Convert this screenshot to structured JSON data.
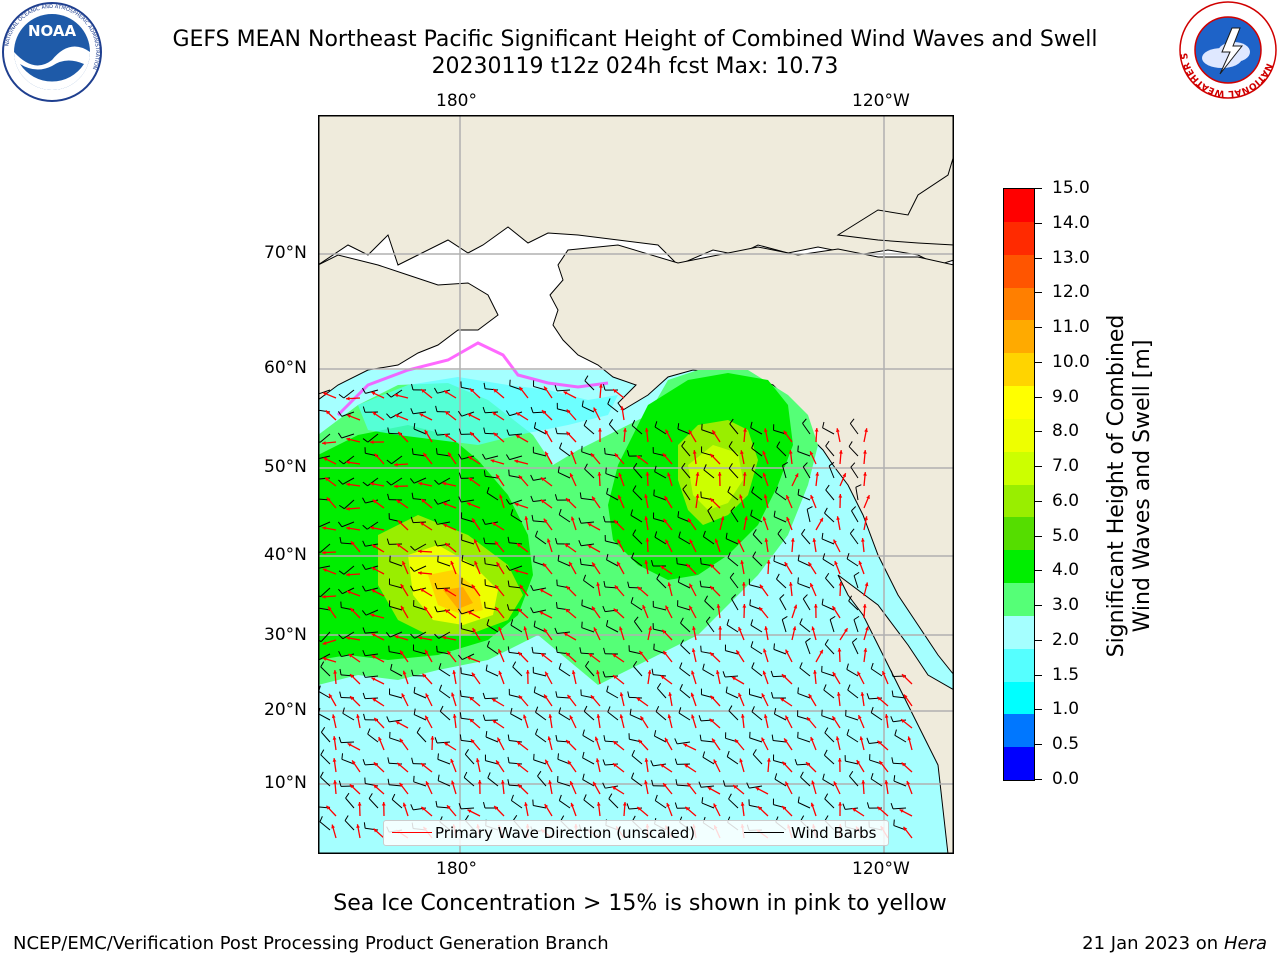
{
  "title": {
    "line1": "GEFS MEAN Northeast Pacific Significant Height of Combined Wind Waves and Swell",
    "line2": "20230119 t12z 024h fcst   Max: 10.73"
  },
  "map": {
    "lon_ticks_top": [
      "180°",
      "120°W"
    ],
    "lon_ticks_bottom": [
      "180°",
      "120°W"
    ],
    "lat_ticks": [
      "70°N",
      "60°N",
      "50°N",
      "40°N",
      "30°N",
      "20°N",
      "10°N"
    ],
    "colors": {
      "land": "#efebdc",
      "ocean_low": "#a5ffff",
      "grid": "#b0b0b0",
      "wave_arrow": "#ff0000",
      "wind_barb": "#000000"
    }
  },
  "legend": {
    "wave_direction": "Primary Wave Direction (unscaled)",
    "wind_barbs": "Wind Barbs"
  },
  "colorbar": {
    "title_line1": "Significant Height of Combined",
    "title_line2": "Wind Waves and Swell [m]",
    "ticks": [
      "15.0",
      "14.0",
      "13.0",
      "12.0",
      "11.0",
      "10.0",
      "9.0",
      "8.0",
      "7.0",
      "6.0",
      "5.0",
      "4.0",
      "3.0",
      "2.0",
      "1.5",
      "1.0",
      "0.5",
      "0.0"
    ],
    "colors": [
      "#ff0000",
      "#ff2a00",
      "#ff5500",
      "#ff7f00",
      "#ffaa00",
      "#ffd400",
      "#ffff00",
      "#eeff00",
      "#ccff00",
      "#99ee00",
      "#55dd00",
      "#00ee00",
      "#55ff77",
      "#a5ffff",
      "#55ffff",
      "#00ffff",
      "#0077ff",
      "#0000ff"
    ]
  },
  "subtitle": "Sea Ice Concentration > 15% is shown in pink to yellow",
  "footer": {
    "left": "NCEP/EMC/Verification Post Processing Product Generation Branch",
    "date": "21 Jan 2023 on",
    "host": "Hera"
  },
  "logos": {
    "noaa": {
      "text": "NOAA",
      "ring_text": "NATIONAL OCEANIC AND ATMOSPHERIC ADMINISTRATION"
    },
    "nws": {
      "ring_text": "NATIONAL WEATHER SERVICE"
    }
  }
}
